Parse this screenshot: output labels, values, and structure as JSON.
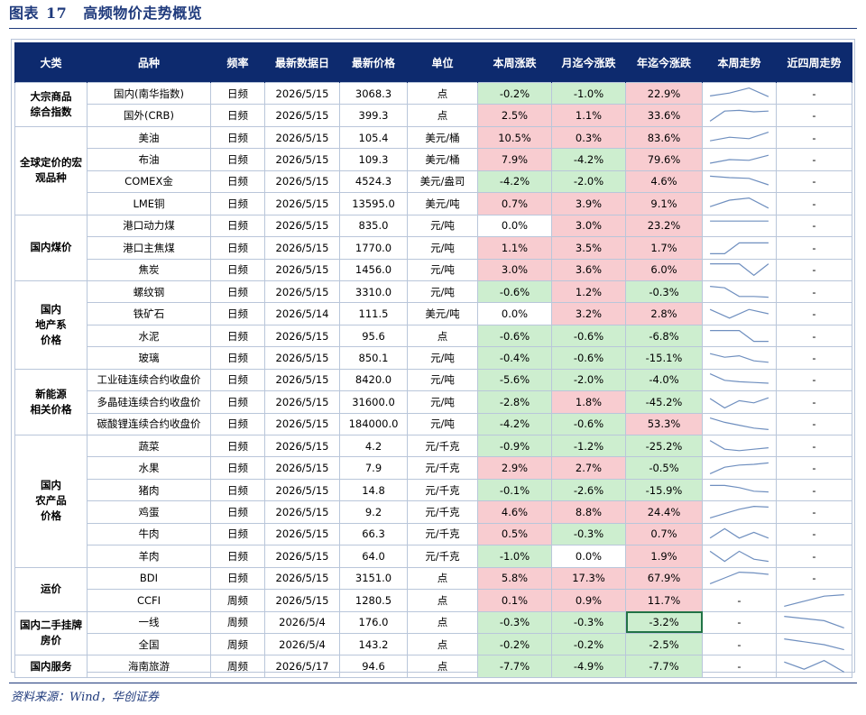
{
  "header": {
    "figure_label": "图表",
    "figure_number": "17",
    "title": "高频物价走势概览"
  },
  "table": {
    "columns": [
      "大类",
      "品种",
      "频率",
      "最新数据日",
      "最新价格",
      "单位",
      "本周涨跌",
      "月迄今涨跌",
      "年迄今涨跌",
      "本周走势",
      "近四周走势"
    ],
    "groups": [
      {
        "name": "大宗商品\n综合指数",
        "rows": [
          {
            "item": "国内(南华指数)",
            "freq": "日频",
            "date": "2026/5/15",
            "price": "3068.3",
            "unit": "点",
            "wk": "-0.2%",
            "mtd": "-1.0%",
            "ytd": "22.9%",
            "wk_trend": [
              0.35,
              0.55,
              0.9,
              0.3
            ],
            "m4_trend": "-"
          },
          {
            "item": "国外(CRB)",
            "freq": "日频",
            "date": "2026/5/15",
            "price": "399.3",
            "unit": "点",
            "wk": "2.5%",
            "mtd": "1.1%",
            "ytd": "33.6%",
            "wk_trend": [
              0.1,
              0.8,
              0.85,
              0.75,
              0.8
            ],
            "m4_trend": "-"
          }
        ]
      },
      {
        "name": "全球定价的宏\n观品种",
        "rows": [
          {
            "item": "美油",
            "freq": "日频",
            "date": "2026/5/15",
            "price": "105.4",
            "unit": "美元/桶",
            "wk": "10.5%",
            "mtd": "0.3%",
            "ytd": "83.6%",
            "wk_trend": [
              0.3,
              0.55,
              0.45,
              0.9
            ],
            "m4_trend": "-"
          },
          {
            "item": "布油",
            "freq": "日频",
            "date": "2026/5/15",
            "price": "109.3",
            "unit": "美元/桶",
            "wk": "7.9%",
            "mtd": "-4.2%",
            "ytd": "79.6%",
            "wk_trend": [
              0.25,
              0.5,
              0.45,
              0.8
            ],
            "m4_trend": "-"
          },
          {
            "item": "COMEX金",
            "freq": "日频",
            "date": "2026/5/15",
            "price": "4524.3",
            "unit": "美元/盎司",
            "wk": "-4.2%",
            "mtd": "-2.0%",
            "ytd": "4.6%",
            "wk_trend": [
              0.85,
              0.75,
              0.7,
              0.25
            ],
            "m4_trend": "-"
          },
          {
            "item": "LME铜",
            "freq": "日频",
            "date": "2026/5/15",
            "price": "13595.0",
            "unit": "美元/吨",
            "wk": "0.7%",
            "mtd": "3.9%",
            "ytd": "9.1%",
            "wk_trend": [
              0.3,
              0.75,
              0.9,
              0.2
            ],
            "m4_trend": "-"
          }
        ]
      },
      {
        "name": "国内煤价",
        "rows": [
          {
            "item": "港口动力煤",
            "freq": "日频",
            "date": "2026/5/15",
            "price": "835.0",
            "unit": "元/吨",
            "wk": "0.0%",
            "mtd": "3.0%",
            "ytd": "23.2%",
            "wk_trend": [
              0.8,
              0.8,
              0.8,
              0.8
            ],
            "m4_trend": "-"
          },
          {
            "item": "港口主焦煤",
            "freq": "日频",
            "date": "2026/5/15",
            "price": "1770.0",
            "unit": "元/吨",
            "wk": "1.1%",
            "mtd": "3.5%",
            "ytd": "1.7%",
            "wk_trend": [
              0.1,
              0.1,
              0.85,
              0.85,
              0.85
            ],
            "m4_trend": "-"
          },
          {
            "item": "焦炭",
            "freq": "日频",
            "date": "2026/5/15",
            "price": "1456.0",
            "unit": "元/吨",
            "wk": "3.0%",
            "mtd": "3.6%",
            "ytd": "6.0%",
            "wk_trend": [
              0.9,
              0.9,
              0.9,
              0.1,
              0.9
            ],
            "m4_trend": "-"
          }
        ]
      },
      {
        "name": "国内\n地产系\n价格",
        "rows": [
          {
            "item": "螺纹钢",
            "freq": "日频",
            "date": "2026/5/15",
            "price": "3310.0",
            "unit": "元/吨",
            "wk": "-0.6%",
            "mtd": "1.2%",
            "ytd": "-0.3%",
            "wk_trend": [
              0.9,
              0.8,
              0.2,
              0.2,
              0.15
            ],
            "m4_trend": "-"
          },
          {
            "item": "铁矿石",
            "freq": "日频",
            "date": "2026/5/14",
            "price": "111.5",
            "unit": "美元/吨",
            "wk": "0.0%",
            "mtd": "3.2%",
            "ytd": "2.8%",
            "wk_trend": [
              0.8,
              0.2,
              0.8,
              0.5
            ],
            "m4_trend": "-"
          },
          {
            "item": "水泥",
            "freq": "日频",
            "date": "2026/5/15",
            "price": "95.6",
            "unit": "点",
            "wk": "-0.6%",
            "mtd": "-0.6%",
            "ytd": "-6.8%",
            "wk_trend": [
              0.9,
              0.9,
              0.9,
              0.15,
              0.15
            ],
            "m4_trend": "-"
          },
          {
            "item": "玻璃",
            "freq": "日频",
            "date": "2026/5/15",
            "price": "850.1",
            "unit": "元/吨",
            "wk": "-0.4%",
            "mtd": "-0.6%",
            "ytd": "-15.1%",
            "wk_trend": [
              0.8,
              0.55,
              0.65,
              0.3,
              0.2
            ],
            "m4_trend": "-"
          }
        ]
      },
      {
        "name": "新能源\n相关价格",
        "rows": [
          {
            "item": "工业硅连续合约收盘价",
            "freq": "日频",
            "date": "2026/5/15",
            "price": "8420.0",
            "unit": "元/吨",
            "wk": "-5.6%",
            "mtd": "-2.0%",
            "ytd": "-4.0%",
            "wk_trend": [
              0.9,
              0.45,
              0.35,
              0.3,
              0.25
            ],
            "m4_trend": "-"
          },
          {
            "item": "多晶硅连续合约收盘价",
            "freq": "日频",
            "date": "2026/5/15",
            "price": "31600.0",
            "unit": "元/吨",
            "wk": "-2.8%",
            "mtd": "1.8%",
            "ytd": "-45.2%",
            "wk_trend": [
              0.75,
              0.1,
              0.6,
              0.45,
              0.8
            ],
            "m4_trend": "-"
          },
          {
            "item": "碳酸锂连续合约收盘价",
            "freq": "日频",
            "date": "2026/5/15",
            "price": "184000.0",
            "unit": "元/吨",
            "wk": "-4.2%",
            "mtd": "-0.6%",
            "ytd": "53.3%",
            "wk_trend": [
              0.9,
              0.6,
              0.4,
              0.2,
              0.1
            ],
            "m4_trend": "-"
          }
        ]
      },
      {
        "name": "国内\n农产品\n价格",
        "rows": [
          {
            "item": "蔬菜",
            "freq": "日频",
            "date": "2026/5/15",
            "price": "4.2",
            "unit": "元/千克",
            "wk": "-0.9%",
            "mtd": "-1.2%",
            "ytd": "-25.2%",
            "wk_trend": [
              0.9,
              0.3,
              0.2,
              0.3,
              0.4
            ],
            "m4_trend": "-"
          },
          {
            "item": "水果",
            "freq": "日频",
            "date": "2026/5/15",
            "price": "7.9",
            "unit": "元/千克",
            "wk": "2.9%",
            "mtd": "2.7%",
            "ytd": "-0.5%",
            "wk_trend": [
              0.1,
              0.55,
              0.7,
              0.75,
              0.85
            ],
            "m4_trend": "-"
          },
          {
            "item": "猪肉",
            "freq": "日频",
            "date": "2026/5/15",
            "price": "14.8",
            "unit": "元/千克",
            "wk": "-0.1%",
            "mtd": "-2.6%",
            "ytd": "-15.9%",
            "wk_trend": [
              0.85,
              0.85,
              0.7,
              0.45,
              0.4
            ],
            "m4_trend": "-"
          },
          {
            "item": "鸡蛋",
            "freq": "日频",
            "date": "2026/5/15",
            "price": "9.2",
            "unit": "元/千克",
            "wk": "4.6%",
            "mtd": "8.8%",
            "ytd": "24.4%",
            "wk_trend": [
              0.1,
              0.4,
              0.7,
              0.9,
              0.85
            ],
            "m4_trend": "-"
          },
          {
            "item": "牛肉",
            "freq": "日频",
            "date": "2026/5/15",
            "price": "66.3",
            "unit": "元/千克",
            "wk": "0.5%",
            "mtd": "-0.3%",
            "ytd": "0.7%",
            "wk_trend": [
              0.2,
              0.85,
              0.2,
              0.6,
              0.2
            ],
            "m4_trend": "-"
          },
          {
            "item": "羊肉",
            "freq": "日频",
            "date": "2026/5/15",
            "price": "64.0",
            "unit": "元/千克",
            "wk": "-1.0%",
            "mtd": "0.0%",
            "ytd": "1.9%",
            "wk_trend": [
              0.85,
              0.15,
              0.85,
              0.3,
              0.15
            ],
            "m4_trend": "-"
          }
        ]
      },
      {
        "name": "运价",
        "rows": [
          {
            "item": "BDI",
            "freq": "日频",
            "date": "2026/5/15",
            "price": "3151.0",
            "unit": "点",
            "wk": "5.8%",
            "mtd": "17.3%",
            "ytd": "67.9%",
            "wk_trend": [
              0.1,
              0.5,
              0.9,
              0.85,
              0.75
            ],
            "m4_trend": "-"
          },
          {
            "item": "CCFI",
            "freq": "周频",
            "date": "2026/5/15",
            "price": "1280.5",
            "unit": "点",
            "wk": "0.1%",
            "mtd": "0.9%",
            "ytd": "11.7%",
            "wk_trend": "-",
            "m4_trend": [
              0.1,
              0.45,
              0.8,
              0.9
            ]
          }
        ]
      },
      {
        "name": "国内二手挂牌\n房价",
        "rows": [
          {
            "item": "一线",
            "freq": "周频",
            "date": "2026/5/4",
            "price": "176.0",
            "unit": "点",
            "wk": "-0.3%",
            "mtd": "-0.3%",
            "ytd": "-3.2%",
            "wk_trend": "-",
            "m4_trend": [
              0.9,
              0.75,
              0.6,
              0.1
            ],
            "selected": "ytd"
          },
          {
            "item": "全国",
            "freq": "周频",
            "date": "2026/5/4",
            "price": "143.2",
            "unit": "点",
            "wk": "-0.2%",
            "mtd": "-0.2%",
            "ytd": "-2.5%",
            "wk_trend": "-",
            "m4_trend": [
              0.9,
              0.7,
              0.5,
              0.15
            ]
          }
        ]
      },
      {
        "name": "国内服务",
        "rows": [
          {
            "item": "海南旅游",
            "freq": "周频",
            "date": "2026/5/17",
            "price": "94.6",
            "unit": "点",
            "wk": "-7.7%",
            "mtd": "-4.9%",
            "ytd": "-7.7%",
            "wk_trend": "-",
            "m4_trend": [
              0.8,
              0.3,
              0.9,
              0.1
            ]
          }
        ]
      }
    ]
  },
  "colors": {
    "header_bg": "#0d2a6e",
    "positive": "#f8ccd0",
    "negative": "#cdeecf",
    "sparkline": "#6f8fbf",
    "title": "#1f3a7c"
  },
  "source": "资料来源：Wind，华创证券"
}
